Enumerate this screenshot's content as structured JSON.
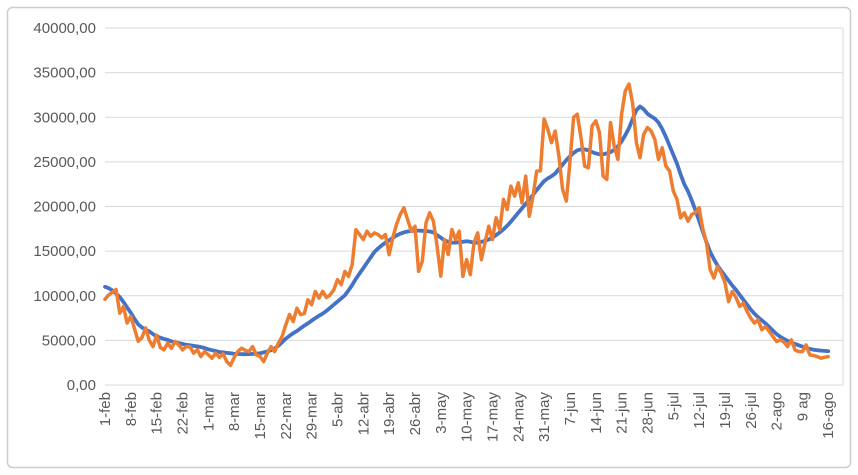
{
  "chart_data": {
    "type": "line",
    "title": "",
    "legend": "none",
    "grid": true,
    "background": "#FFFFFF",
    "gridline_color": "#D9D9D9",
    "border_color": "#CDCDCD",
    "tick_label_color": "#595959",
    "ylim": [
      0,
      40000
    ],
    "y_tick_values": [
      0,
      5000,
      10000,
      15000,
      20000,
      25000,
      30000,
      35000,
      40000
    ],
    "y_tick_labels": [
      "0,00",
      "5000,00",
      "10000,00",
      "15000,00",
      "20000,00",
      "25000,00",
      "30000,00",
      "35000,00",
      "40000,00"
    ],
    "x_tick_labels": [
      "1-feb",
      "8-feb",
      "15-feb",
      "22-feb",
      "1-mar",
      "8-mar",
      "15-mar",
      "22-mar",
      "29-mar",
      "5-abr",
      "12-abr",
      "19-abr",
      "26-abr",
      "3-may",
      "10-may",
      "17-may",
      "24-may",
      "31-may",
      "7-jun",
      "14-jun",
      "21-jun",
      "28-jun",
      "5-jul",
      "12-jul",
      "19-jul",
      "26-jul",
      "2-ago",
      "9 ag",
      "16-ago"
    ],
    "x_tick_interval_days": 7,
    "axis_total_days": 201,
    "series": [
      {
        "id": "series-1-smooth",
        "color": "#4472C4",
        "stroke_width": 3.8,
        "values": [
          11000,
          10850,
          10600,
          10250,
          9850,
          9300,
          8700,
          8100,
          7400,
          6800,
          6450,
          6200,
          6000,
          5700,
          5450,
          5300,
          5150,
          5050,
          4900,
          4800,
          4700,
          4600,
          4500,
          4450,
          4380,
          4320,
          4250,
          4150,
          4000,
          3900,
          3800,
          3700,
          3650,
          3600,
          3550,
          3500,
          3480,
          3460,
          3450,
          3460,
          3480,
          3500,
          3550,
          3650,
          3750,
          3900,
          4100,
          4400,
          4800,
          5200,
          5500,
          5800,
          6050,
          6350,
          6650,
          6900,
          7200,
          7500,
          7750,
          8000,
          8300,
          8650,
          9000,
          9350,
          9700,
          10050,
          10600,
          11200,
          11900,
          12500,
          13100,
          13700,
          14300,
          14900,
          15300,
          15650,
          15950,
          16200,
          16500,
          16750,
          16950,
          17100,
          17200,
          17250,
          17300,
          17300,
          17280,
          17250,
          17200,
          17100,
          16800,
          16500,
          16200,
          16050,
          15950,
          15950,
          16000,
          16050,
          16100,
          16050,
          15950,
          15950,
          16050,
          16150,
          16300,
          16500,
          16800,
          17100,
          17450,
          17850,
          18300,
          18800,
          19300,
          19800,
          20300,
          20800,
          21300,
          21850,
          22350,
          22850,
          23150,
          23400,
          23700,
          24200,
          24700,
          25200,
          25600,
          26000,
          26300,
          26400,
          26400,
          26300,
          26100,
          25950,
          25850,
          25850,
          25950,
          26100,
          26350,
          26750,
          27300,
          28000,
          28800,
          29800,
          30800,
          31200,
          30900,
          30400,
          30100,
          29850,
          29400,
          28700,
          27800,
          26800,
          25800,
          24800,
          23600,
          22500,
          21700,
          20700,
          19600,
          18400,
          17200,
          16000,
          14900,
          14100,
          13400,
          12800,
          12250,
          11700,
          11150,
          10650,
          10100,
          9550,
          9000,
          8450,
          8000,
          7600,
          7250,
          6900,
          6500,
          6100,
          5700,
          5400,
          5150,
          4950,
          4750,
          4600,
          4450,
          4300,
          4150,
          4050,
          3950,
          3900,
          3850,
          3820,
          3800
        ]
      },
      {
        "id": "series-2-daily",
        "color": "#ED7D31",
        "stroke_width": 3.5,
        "values": [
          9600,
          10100,
          10400,
          10700,
          8050,
          8800,
          6950,
          7700,
          6300,
          4900,
          5300,
          6400,
          5000,
          4300,
          5600,
          4200,
          3930,
          4680,
          4120,
          4870,
          4500,
          3930,
          4300,
          4300,
          3560,
          3950,
          3180,
          3740,
          3400,
          3000,
          3560,
          3100,
          3500,
          2620,
          2200,
          3100,
          3740,
          4120,
          3900,
          3740,
          4300,
          3370,
          3200,
          2620,
          3600,
          4300,
          3740,
          4700,
          5430,
          6740,
          7900,
          7100,
          8600,
          7900,
          8000,
          9550,
          9000,
          10480,
          9740,
          10500,
          9800,
          10100,
          10670,
          11800,
          11240,
          12730,
          12170,
          13500,
          17400,
          16850,
          16290,
          17230,
          16670,
          17040,
          16850,
          16480,
          16850,
          14600,
          16480,
          17980,
          19100,
          19850,
          18540,
          17230,
          17790,
          12730,
          13860,
          18170,
          19290,
          18350,
          15540,
          12200,
          16290,
          14610,
          17420,
          16290,
          17230,
          12170,
          14050,
          12360,
          15920,
          17040,
          14050,
          16000,
          17790,
          16290,
          18730,
          17420,
          20790,
          19660,
          22290,
          21160,
          22660,
          20410,
          23410,
          18910,
          21160,
          23970,
          24000,
          29800,
          28650,
          27150,
          28460,
          25650,
          21910,
          20600,
          24910,
          30000,
          30340,
          27710,
          24530,
          24340,
          29030,
          29590,
          28280,
          23410,
          23030,
          29400,
          26780,
          25280,
          30340,
          32960,
          33710,
          31500,
          27150,
          25470,
          28090,
          28840,
          28460,
          27530,
          25280,
          26590,
          24530,
          23970,
          21720,
          20790,
          18730,
          19290,
          18350,
          19100,
          19300,
          19850,
          17500,
          15920,
          12920,
          11990,
          13300,
          12550,
          11500,
          9360,
          10480,
          9800,
          8800,
          9180,
          8240,
          7500,
          6930,
          7300,
          6180,
          6550,
          6000,
          5430,
          4870,
          5060,
          4800,
          4300,
          5060,
          3930,
          3740,
          3740,
          4490,
          3370,
          3300,
          3180,
          3000,
          3100,
          3180
        ]
      }
    ]
  }
}
